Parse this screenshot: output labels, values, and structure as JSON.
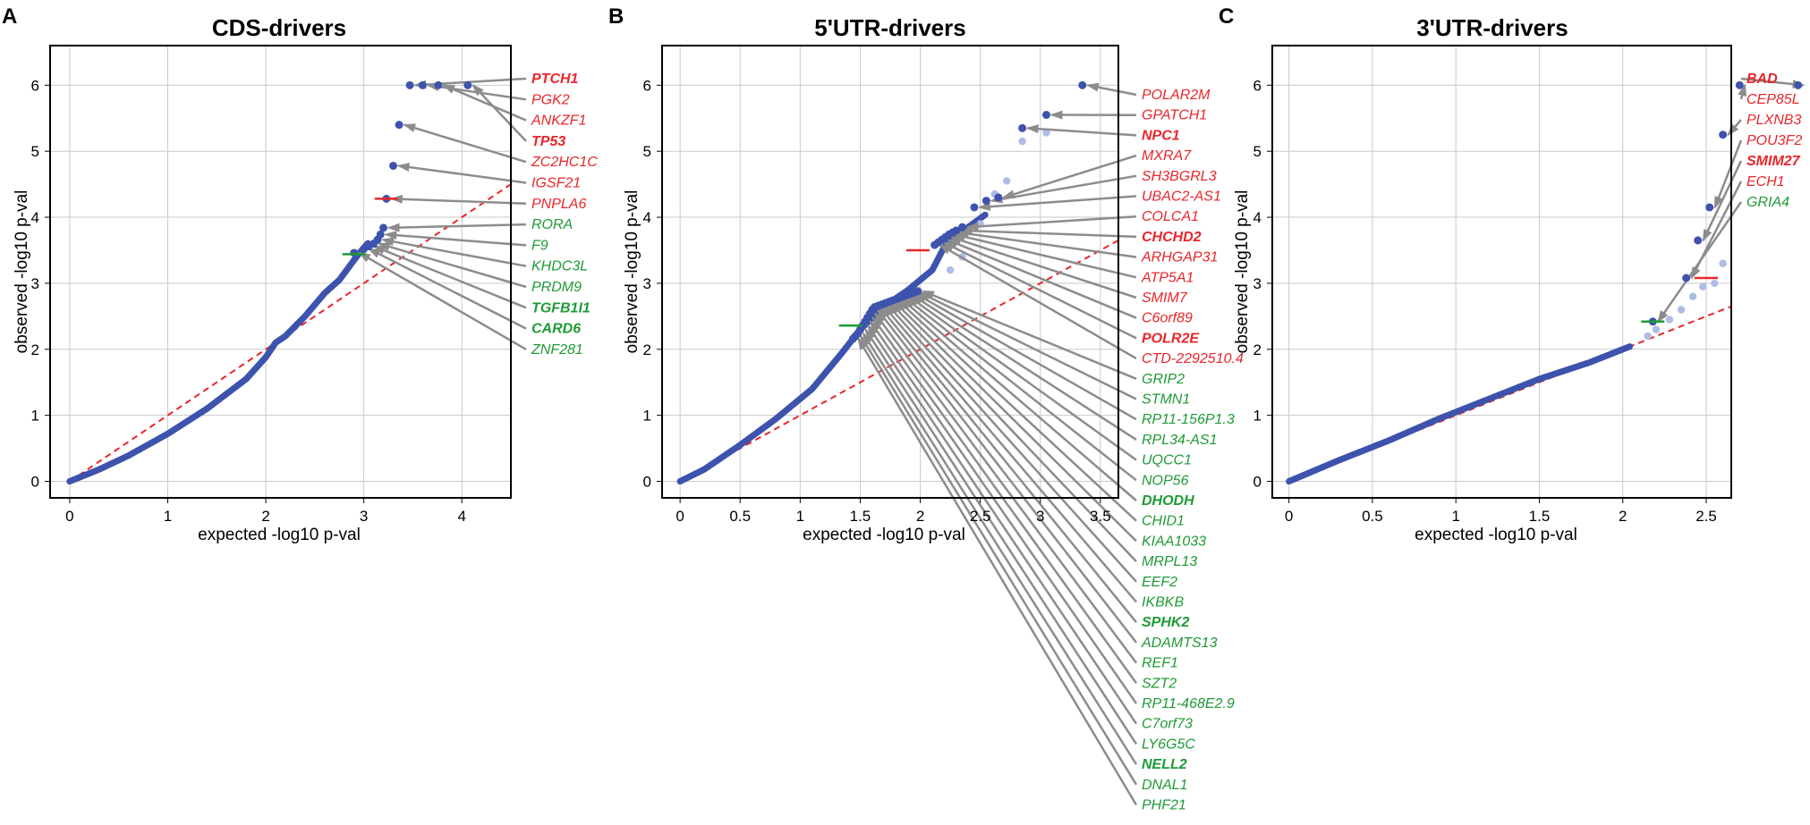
{
  "colors": {
    "red": "#e8262b",
    "green": "#1f9a36",
    "point": "#3d53ad",
    "point_light": "#aebde6",
    "arrow": "#8c8c8c",
    "grid": "#c9c9c9",
    "diag": "#e8262b"
  },
  "chart_data": [
    {
      "type": "scatter",
      "panel": "A",
      "title": "CDS-drivers",
      "xlabel": "expected -log10 p-val",
      "ylabel": "observed -log10 p-val",
      "xlim": [
        -0.2,
        4.5
      ],
      "ylim": [
        -0.25,
        6.6
      ],
      "xticks": [
        0,
        1,
        2,
        3,
        4
      ],
      "yticks": [
        0,
        1,
        2,
        3,
        4,
        5,
        6
      ],
      "curve": [
        [
          0,
          0
        ],
        [
          0.1,
          0.06
        ],
        [
          0.3,
          0.18
        ],
        [
          0.6,
          0.39
        ],
        [
          1.0,
          0.72
        ],
        [
          1.4,
          1.1
        ],
        [
          1.8,
          1.55
        ],
        [
          2.0,
          1.88
        ],
        [
          2.1,
          2.1
        ],
        [
          2.2,
          2.2
        ],
        [
          2.4,
          2.5
        ],
        [
          2.6,
          2.85
        ],
        [
          2.75,
          3.05
        ],
        [
          2.85,
          3.25
        ],
        [
          2.95,
          3.45
        ],
        [
          3.05,
          3.62
        ]
      ],
      "light_points": [],
      "drivers": [
        {
          "x": 3.47,
          "y": 6.0,
          "label": "PTCH1",
          "color": "red",
          "bold": true
        },
        {
          "x": 3.6,
          "y": 6.0,
          "label": "PGK2",
          "color": "red",
          "bold": false
        },
        {
          "x": 3.76,
          "y": 6.0,
          "label": "ANKZF1",
          "color": "red",
          "bold": false
        },
        {
          "x": 4.06,
          "y": 6.0,
          "label": "TP53",
          "color": "red",
          "bold": true
        },
        {
          "x": 3.36,
          "y": 5.4,
          "label": "ZC2HC1C",
          "color": "red",
          "bold": false
        },
        {
          "x": 3.3,
          "y": 4.78,
          "label": "IGSF21",
          "color": "red",
          "bold": false
        },
        {
          "x": 3.23,
          "y": 4.28,
          "label": "PNPLA6",
          "color": "red",
          "bold": false
        },
        {
          "x": 3.2,
          "y": 3.84,
          "label": "RORA",
          "color": "green",
          "bold": false
        },
        {
          "x": 3.17,
          "y": 3.74,
          "label": "F9",
          "color": "green",
          "bold": false
        },
        {
          "x": 3.14,
          "y": 3.66,
          "label": "KHDC3L",
          "color": "green",
          "bold": false
        },
        {
          "x": 3.1,
          "y": 3.6,
          "label": "PRDM9",
          "color": "green",
          "bold": false
        },
        {
          "x": 3.05,
          "y": 3.56,
          "label": "TGFB1I1",
          "color": "green",
          "bold": true
        },
        {
          "x": 3.0,
          "y": 3.52,
          "label": "CARD6",
          "color": "green",
          "bold": true
        },
        {
          "x": 2.9,
          "y": 3.46,
          "label": "ZNF281",
          "color": "green",
          "bold": false
        }
      ],
      "highlight_marks": [
        {
          "x": 3.23,
          "y": 4.28,
          "color": "red"
        },
        {
          "x": 2.9,
          "y": 3.44,
          "color": "green"
        }
      ]
    },
    {
      "type": "scatter",
      "panel": "B",
      "title": "5'UTR-drivers",
      "xlabel": "expected -log10 p-val",
      "ylabel": "observed -log10 p-val",
      "xlim": [
        -0.15,
        3.65
      ],
      "ylim": [
        -0.25,
        6.6
      ],
      "xticks": [
        0,
        0.5,
        1,
        1.5,
        2,
        2.5,
        3,
        3.5
      ],
      "yticks": [
        0,
        1,
        2,
        3,
        4,
        5,
        6
      ],
      "curve": [
        [
          0,
          0
        ],
        [
          0.2,
          0.18
        ],
        [
          0.5,
          0.55
        ],
        [
          0.8,
          0.95
        ],
        [
          1.1,
          1.4
        ],
        [
          1.35,
          1.95
        ],
        [
          1.5,
          2.3
        ],
        [
          1.7,
          2.65
        ],
        [
          1.9,
          2.9
        ],
        [
          2.1,
          3.2
        ],
        [
          2.2,
          3.55
        ],
        [
          2.3,
          3.75
        ],
        [
          2.4,
          3.85
        ],
        [
          2.55,
          4.05
        ]
      ],
      "light_points": [
        [
          2.25,
          3.2
        ],
        [
          2.35,
          3.4
        ],
        [
          2.5,
          3.9
        ],
        [
          2.62,
          4.35
        ],
        [
          2.72,
          4.55
        ],
        [
          2.85,
          5.15
        ],
        [
          3.05,
          5.28
        ]
      ],
      "drivers": [
        {
          "x": 3.35,
          "y": 6.0,
          "label": "POLAR2M",
          "color": "red",
          "bold": false
        },
        {
          "x": 3.05,
          "y": 5.55,
          "label": "GPATCH1",
          "color": "red",
          "bold": false
        },
        {
          "x": 2.85,
          "y": 5.35,
          "label": "NPC1",
          "color": "red",
          "bold": true
        },
        {
          "x": 2.65,
          "y": 4.3,
          "label": "MXRA7",
          "color": "red",
          "bold": false
        },
        {
          "x": 2.55,
          "y": 4.25,
          "label": "SH3BGRL3",
          "color": "red",
          "bold": false
        },
        {
          "x": 2.45,
          "y": 4.15,
          "label": "UBAC2-AS1",
          "color": "red",
          "bold": false
        },
        {
          "x": 2.35,
          "y": 3.85,
          "label": "COLCA1",
          "color": "red",
          "bold": false
        },
        {
          "x": 2.3,
          "y": 3.8,
          "label": "CHCHD2",
          "color": "red",
          "bold": true
        },
        {
          "x": 2.27,
          "y": 3.77,
          "label": "ARHGAP31",
          "color": "red",
          "bold": false
        },
        {
          "x": 2.24,
          "y": 3.74,
          "label": "ATP5A1",
          "color": "red",
          "bold": false
        },
        {
          "x": 2.21,
          "y": 3.7,
          "label": "SMIM7",
          "color": "red",
          "bold": false
        },
        {
          "x": 2.18,
          "y": 3.66,
          "label": "C6orf89",
          "color": "red",
          "bold": false
        },
        {
          "x": 2.15,
          "y": 3.62,
          "label": "POLR2E",
          "color": "red",
          "bold": true
        },
        {
          "x": 2.12,
          "y": 3.58,
          "label": "CTD-2292510.4",
          "color": "red",
          "bold": false
        },
        {
          "x": 1.98,
          "y": 2.88,
          "label": "GRIP2",
          "color": "green",
          "bold": false
        },
        {
          "x": 1.95,
          "y": 2.86,
          "label": "STMN1",
          "color": "green",
          "bold": false
        },
        {
          "x": 1.92,
          "y": 2.84,
          "label": "RP11-156P1.3",
          "color": "green",
          "bold": false
        },
        {
          "x": 1.89,
          "y": 2.82,
          "label": "RPL34-AS1",
          "color": "green",
          "bold": false
        },
        {
          "x": 1.86,
          "y": 2.8,
          "label": "UQCC1",
          "color": "green",
          "bold": false
        },
        {
          "x": 1.83,
          "y": 2.78,
          "label": "NOP56",
          "color": "green",
          "bold": false
        },
        {
          "x": 1.8,
          "y": 2.76,
          "label": "DHODH",
          "color": "green",
          "bold": true
        },
        {
          "x": 1.77,
          "y": 2.74,
          "label": "CHID1",
          "color": "green",
          "bold": false
        },
        {
          "x": 1.74,
          "y": 2.72,
          "label": "KIAA1033",
          "color": "green",
          "bold": false
        },
        {
          "x": 1.71,
          "y": 2.7,
          "label": "MRPL13",
          "color": "green",
          "bold": false
        },
        {
          "x": 1.68,
          "y": 2.68,
          "label": "EEF2",
          "color": "green",
          "bold": false
        },
        {
          "x": 1.65,
          "y": 2.66,
          "label": "IKBKB",
          "color": "green",
          "bold": false
        },
        {
          "x": 1.62,
          "y": 2.64,
          "label": "SPHK2",
          "color": "green",
          "bold": true
        },
        {
          "x": 1.6,
          "y": 2.6,
          "label": "ADAMTS13",
          "color": "green",
          "bold": false
        },
        {
          "x": 1.58,
          "y": 2.54,
          "label": "REF1",
          "color": "green",
          "bold": false
        },
        {
          "x": 1.56,
          "y": 2.48,
          "label": "SZT2",
          "color": "green",
          "bold": false
        },
        {
          "x": 1.54,
          "y": 2.42,
          "label": "RP11-468E2.9",
          "color": "green",
          "bold": false
        },
        {
          "x": 1.52,
          "y": 2.36,
          "label": "C7orf73",
          "color": "green",
          "bold": false
        },
        {
          "x": 1.5,
          "y": 2.3,
          "label": "LY6G5C",
          "color": "green",
          "bold": false
        },
        {
          "x": 1.48,
          "y": 2.24,
          "label": "NELL2",
          "color": "green",
          "bold": true
        },
        {
          "x": 1.46,
          "y": 2.2,
          "label": "DNAL1",
          "color": "green",
          "bold": false
        },
        {
          "x": 1.44,
          "y": 2.16,
          "label": "PHF21",
          "color": "green",
          "bold": false
        }
      ],
      "highlight_marks": [
        {
          "x": 1.98,
          "y": 3.5,
          "color": "red"
        },
        {
          "x": 1.42,
          "y": 2.36,
          "color": "green"
        }
      ]
    },
    {
      "type": "scatter",
      "panel": "C",
      "title": "3'UTR-drivers",
      "xlabel": "expected -log10 p-val",
      "ylabel": "observed -log10 p-val",
      "xlim": [
        -0.1,
        2.65
      ],
      "ylim": [
        -0.25,
        6.6
      ],
      "xticks": [
        0,
        0.5,
        1,
        1.5,
        2,
        2.5
      ],
      "yticks": [
        0,
        1,
        2,
        3,
        4,
        5,
        6
      ],
      "curve": [
        [
          0,
          0
        ],
        [
          0.3,
          0.32
        ],
        [
          0.6,
          0.62
        ],
        [
          0.9,
          0.95
        ],
        [
          1.2,
          1.25
        ],
        [
          1.5,
          1.55
        ],
        [
          1.8,
          1.8
        ],
        [
          2.0,
          2.0
        ],
        [
          2.05,
          2.05
        ]
      ],
      "light_points": [
        [
          2.15,
          2.2
        ],
        [
          2.2,
          2.3
        ],
        [
          2.28,
          2.45
        ],
        [
          2.35,
          2.6
        ],
        [
          2.42,
          2.8
        ],
        [
          2.48,
          2.95
        ],
        [
          2.55,
          3.0
        ],
        [
          2.6,
          3.3
        ]
      ],
      "drivers": [
        {
          "x": 3.05,
          "y": 6.0,
          "label": "BAD",
          "color": "red",
          "bold": true
        },
        {
          "x": 2.7,
          "y": 6.0,
          "label": "CEP85L",
          "color": "red",
          "bold": false
        },
        {
          "x": 2.6,
          "y": 5.25,
          "label": "PLXNB3",
          "color": "red",
          "bold": false
        },
        {
          "x": 2.52,
          "y": 4.15,
          "label": "POU3F2",
          "color": "red",
          "bold": false
        },
        {
          "x": 2.45,
          "y": 3.65,
          "label": "SMIM27",
          "color": "red",
          "bold": true
        },
        {
          "x": 2.38,
          "y": 3.08,
          "label": "ECH1",
          "color": "red",
          "bold": false
        },
        {
          "x": 2.18,
          "y": 2.42,
          "label": "GRIA4",
          "color": "green",
          "bold": false
        }
      ],
      "highlight_marks": [
        {
          "x": 2.5,
          "y": 3.08,
          "color": "red"
        },
        {
          "x": 2.18,
          "y": 2.42,
          "color": "green"
        }
      ]
    }
  ]
}
